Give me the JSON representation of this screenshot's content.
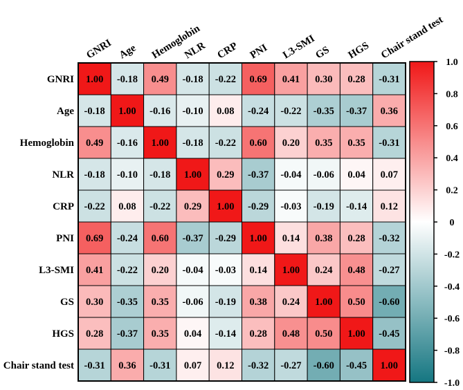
{
  "chart_data": {
    "type": "heatmap",
    "title": "",
    "labels": [
      "GNRI",
      "Age",
      "Hemoglobin",
      "NLR",
      "CRP",
      "PNI",
      "L3-SMI",
      "GS",
      "HGS",
      "Chair stand test"
    ],
    "matrix": [
      [
        1.0,
        -0.18,
        0.49,
        -0.18,
        -0.22,
        0.69,
        0.41,
        0.3,
        0.28,
        -0.31
      ],
      [
        -0.18,
        1.0,
        -0.16,
        -0.1,
        0.08,
        -0.24,
        -0.22,
        -0.35,
        -0.37,
        0.36
      ],
      [
        0.49,
        -0.16,
        1.0,
        -0.18,
        -0.22,
        0.6,
        0.2,
        0.35,
        0.35,
        -0.31
      ],
      [
        -0.18,
        -0.1,
        -0.18,
        1.0,
        0.29,
        -0.37,
        -0.04,
        -0.06,
        0.04,
        0.07
      ],
      [
        -0.22,
        0.08,
        -0.22,
        0.29,
        1.0,
        -0.29,
        -0.03,
        -0.19,
        -0.14,
        0.12
      ],
      [
        0.69,
        -0.24,
        0.6,
        -0.37,
        -0.29,
        1.0,
        0.14,
        0.38,
        0.28,
        -0.32
      ],
      [
        0.41,
        -0.22,
        0.2,
        -0.04,
        -0.03,
        0.14,
        1.0,
        0.24,
        0.48,
        -0.27
      ],
      [
        0.3,
        -0.35,
        0.35,
        -0.06,
        -0.19,
        0.38,
        0.24,
        1.0,
        0.5,
        -0.6
      ],
      [
        0.28,
        -0.37,
        0.35,
        0.04,
        -0.14,
        0.28,
        0.48,
        0.5,
        1.0,
        -0.45
      ],
      [
        -0.31,
        0.36,
        -0.31,
        0.07,
        0.12,
        -0.32,
        -0.27,
        -0.6,
        -0.45,
        1.0
      ]
    ],
    "colorbar": {
      "range": [
        -1.0,
        1.0
      ],
      "ticks": [
        "1.0",
        "0.8",
        "0.6",
        "0.4",
        "0.2",
        "0",
        "-0.2",
        "-0.4",
        "-0.6",
        "-0.8",
        "-1.0"
      ],
      "tick_values": [
        1.0,
        0.8,
        0.6,
        0.4,
        0.2,
        0,
        -0.2,
        -0.4,
        -0.6,
        -0.8,
        -1.0
      ]
    },
    "colors": {
      "positive": "#f01818",
      "neutral": "#ffffff",
      "negative": "#157681"
    }
  }
}
